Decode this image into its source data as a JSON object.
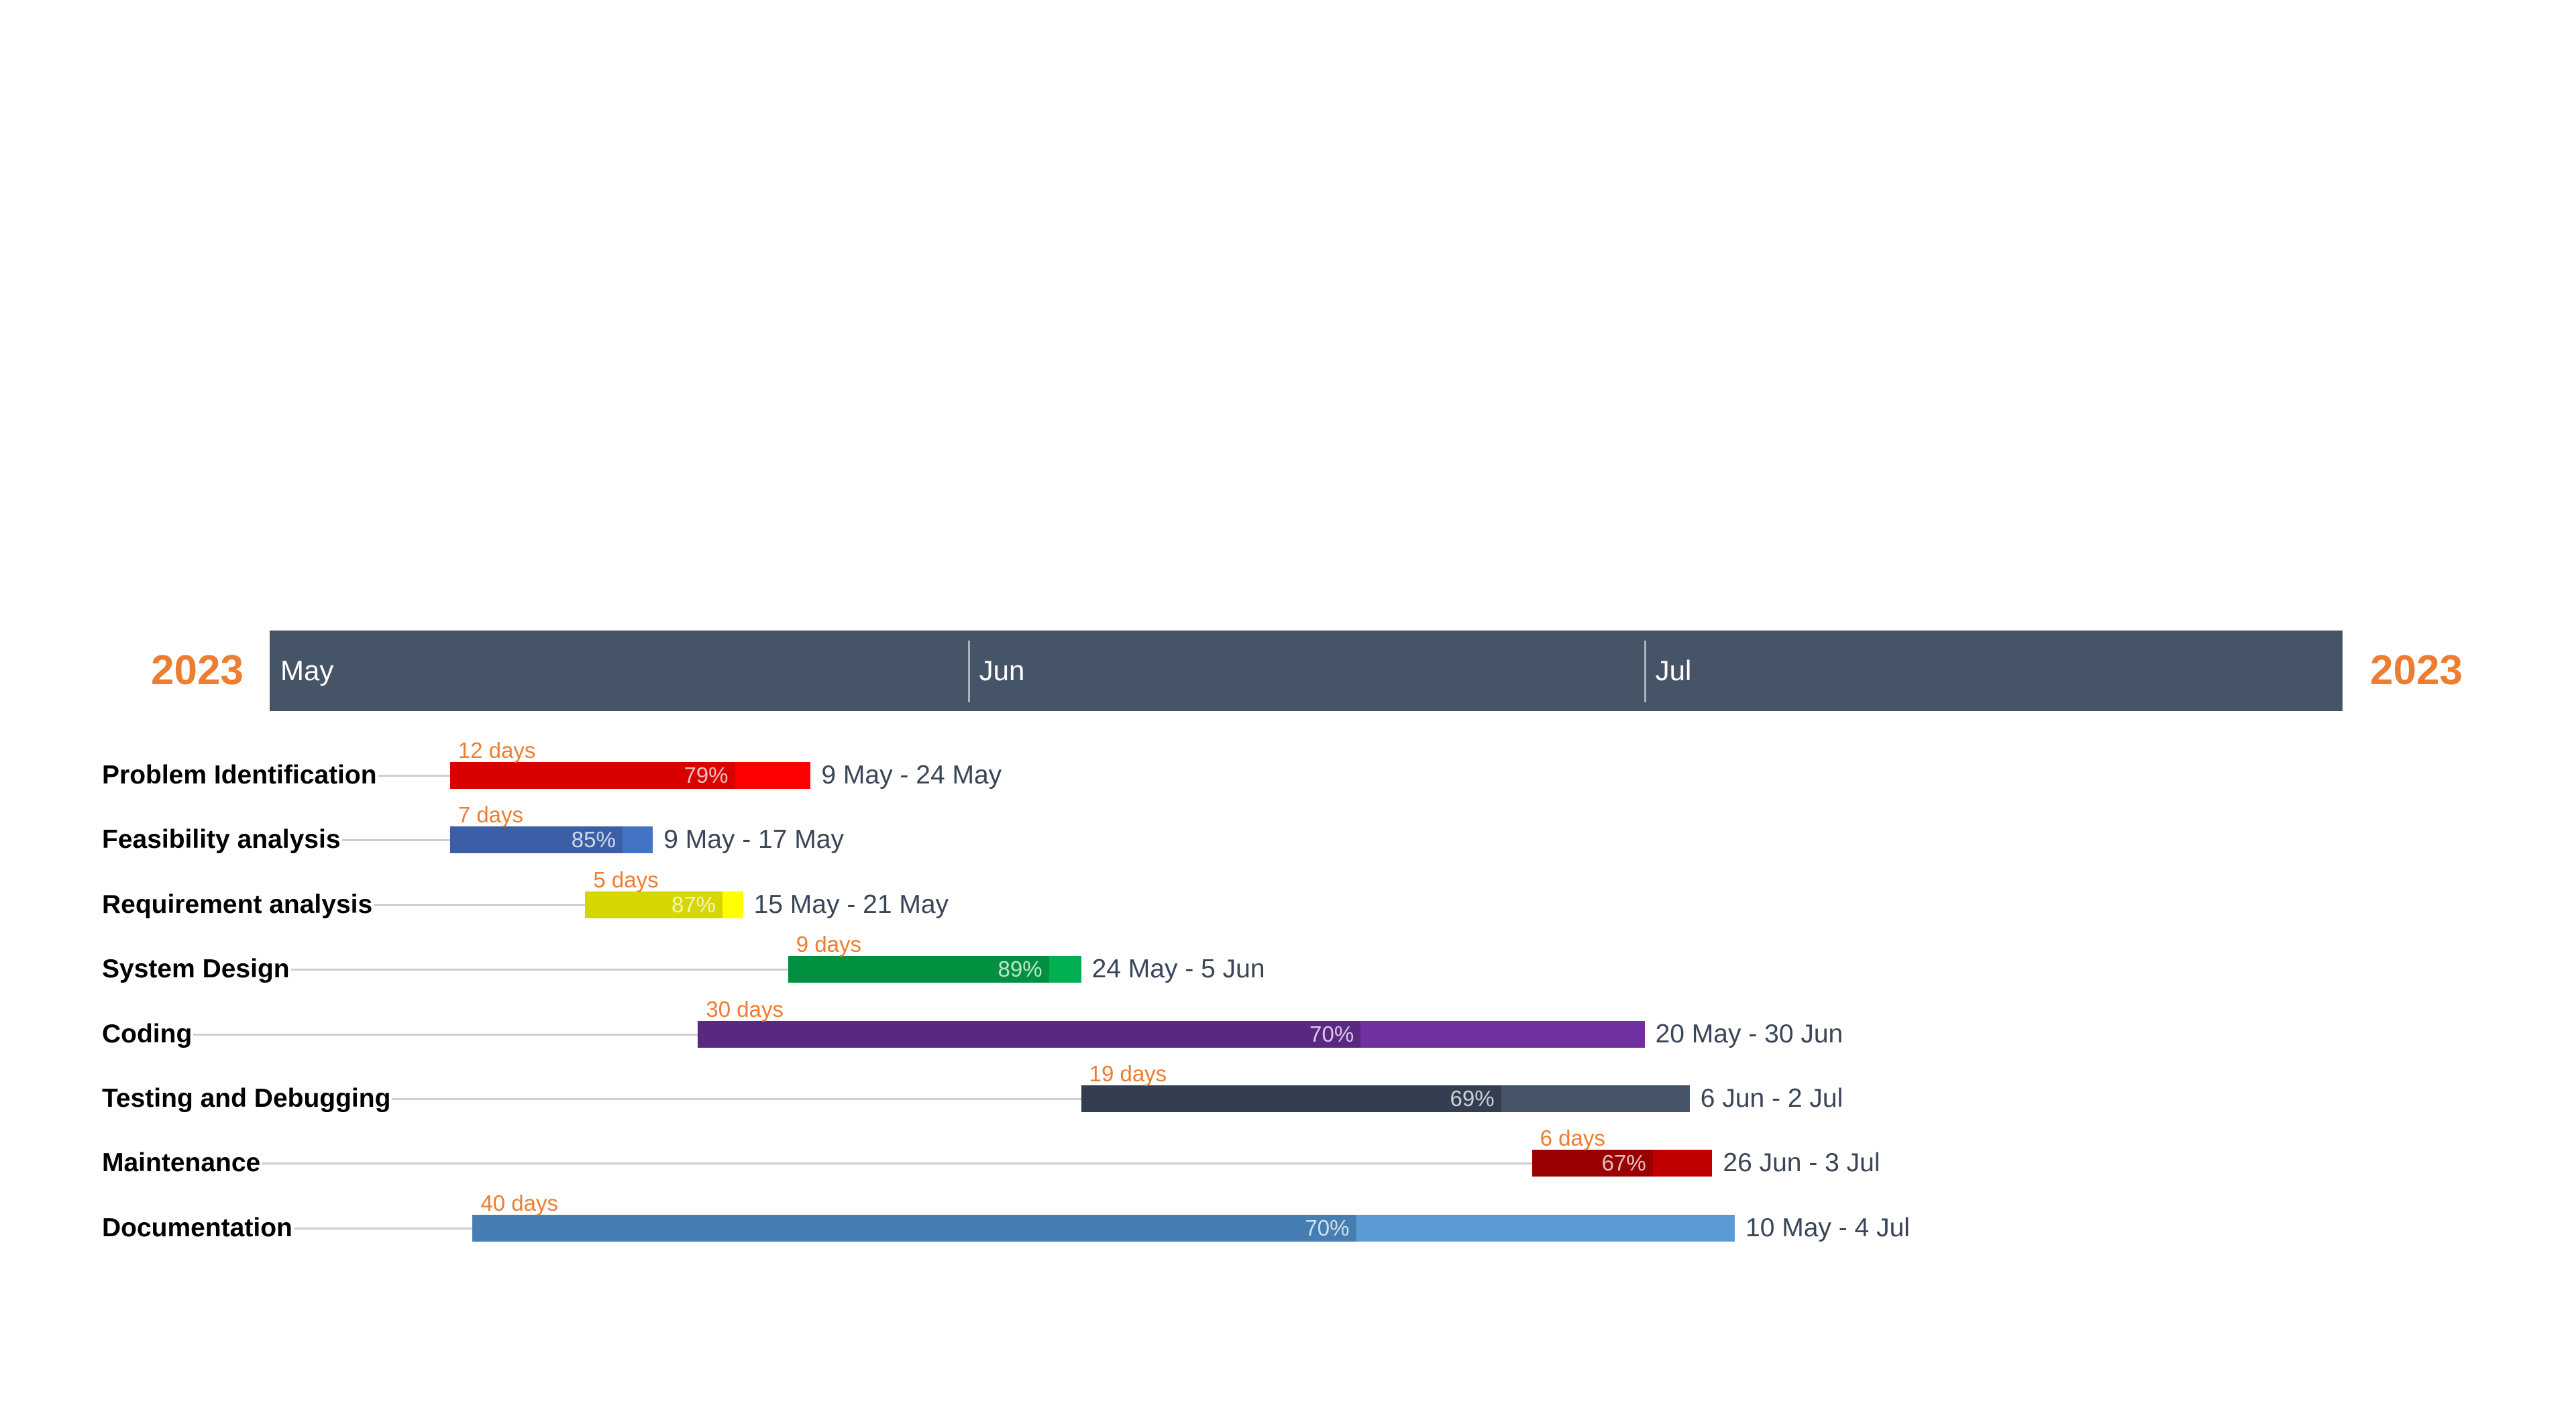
{
  "chart_data": {
    "type": "gantt",
    "year_left": "2023",
    "year_right": "2023",
    "axis": {
      "start": "2023-05-01",
      "end": "2023-08-01",
      "months": [
        {
          "label": "May",
          "start": "2023-05-01"
        },
        {
          "label": "Jun",
          "start": "2023-06-01"
        },
        {
          "label": "Jul",
          "start": "2023-07-01"
        }
      ]
    },
    "tasks": [
      {
        "name": "Problem Identification",
        "start": "2023-05-09",
        "end": "2023-05-24",
        "duration": "12 days",
        "progress": 79,
        "progress_label": "79%",
        "range_label": "9 May - 24 May",
        "color": "#ff0000",
        "done_color": "#d90000"
      },
      {
        "name": "Feasibility analysis",
        "start": "2023-05-09",
        "end": "2023-05-17",
        "duration": "7 days",
        "progress": 85,
        "progress_label": "85%",
        "range_label": "9 May - 17 May",
        "color": "#4472c4",
        "done_color": "#3a5fa6"
      },
      {
        "name": "Requirement analysis",
        "start": "2023-05-15",
        "end": "2023-05-21",
        "duration": "5 days",
        "progress": 87,
        "progress_label": "87%",
        "range_label": "15 May - 21 May",
        "color": "#ffff00",
        "done_color": "#d6d600"
      },
      {
        "name": "System Design",
        "start": "2023-05-24",
        "end": "2023-06-05",
        "duration": "9 days",
        "progress": 89,
        "progress_label": "89%",
        "range_label": "24 May - 5 Jun",
        "color": "#00b050",
        "done_color": "#00903f"
      },
      {
        "name": "Coding",
        "start": "2023-05-20",
        "end": "2023-06-30",
        "duration": "30 days",
        "progress": 70,
        "progress_label": "70%",
        "range_label": "20 May - 30 Jun",
        "color": "#7030a0",
        "done_color": "#5a2782"
      },
      {
        "name": "Testing and Debugging",
        "start": "2023-06-06",
        "end": "2023-07-02",
        "duration": "19 days",
        "progress": 69,
        "progress_label": "69%",
        "range_label": "6 Jun - 2 Jul",
        "color": "#465468",
        "done_color": "#333f50"
      },
      {
        "name": "Maintenance",
        "start": "2023-06-26",
        "end": "2023-07-03",
        "duration": "6 days",
        "progress": 67,
        "progress_label": "67%",
        "range_label": "26 Jun - 3 Jul",
        "color": "#c00000",
        "done_color": "#990000"
      },
      {
        "name": "Documentation",
        "start": "2023-05-10",
        "end": "2023-07-04",
        "duration": "40 days",
        "progress": 70,
        "progress_label": "70%",
        "range_label": "10 May - 4 Jul",
        "color": "#5b9bd5",
        "done_color": "#467eb3"
      }
    ]
  }
}
